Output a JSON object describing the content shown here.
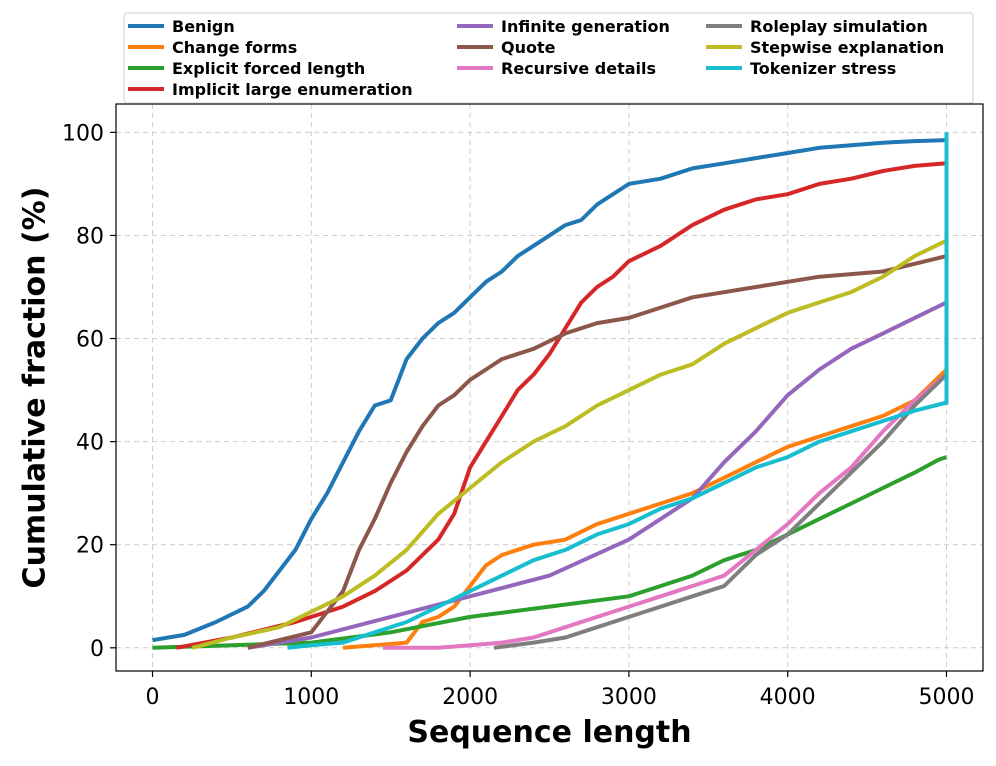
{
  "chart_data": {
    "type": "line",
    "title": "",
    "xlabel": "Sequence length",
    "ylabel": "Cumulative fraction (%)",
    "xlim": [
      -230,
      5230
    ],
    "ylim": [
      -4.5,
      105.5
    ],
    "xticks": [
      0,
      1000,
      2000,
      3000,
      4000,
      5000
    ],
    "yticks": [
      0,
      20,
      40,
      60,
      80,
      100
    ],
    "xtick_labels": [
      "0",
      "1000",
      "2000",
      "3000",
      "4000",
      "5000"
    ],
    "ytick_labels": [
      "0",
      "20",
      "40",
      "60",
      "80",
      "100"
    ],
    "grid": true,
    "legend_position": "top",
    "series": [
      {
        "name": "Benign",
        "color": "#1f77b4",
        "x": [
          0,
          200,
          400,
          600,
          700,
          800,
          900,
          1000,
          1100,
          1200,
          1300,
          1400,
          1500,
          1600,
          1700,
          1800,
          1900,
          2000,
          2100,
          2200,
          2300,
          2400,
          2500,
          2600,
          2700,
          2800,
          2900,
          3000,
          3200,
          3400,
          3600,
          3800,
          4000,
          4200,
          4400,
          4600,
          4800,
          5000
        ],
        "y": [
          1.5,
          2.5,
          5,
          8,
          11,
          15,
          19,
          25,
          30,
          36,
          42,
          47,
          48,
          56,
          60,
          63,
          65,
          68,
          71,
          73,
          76,
          78,
          80,
          82,
          83,
          86,
          88,
          90,
          91,
          93,
          94,
          95,
          96,
          97,
          97.5,
          98,
          98.3,
          98.5
        ]
      },
      {
        "name": "Change forms",
        "color": "#ff7f0e",
        "x": [
          1200,
          1600,
          1650,
          1700,
          1800,
          1900,
          2000,
          2100,
          2200,
          2400,
          2600,
          2800,
          3000,
          3200,
          3400,
          3600,
          3800,
          4000,
          4200,
          4400,
          4600,
          4800,
          5000
        ],
        "y": [
          0,
          1,
          3,
          5,
          6,
          8,
          12,
          16,
          18,
          20,
          21,
          24,
          26,
          28,
          30,
          33,
          36,
          39,
          41,
          43,
          45,
          48,
          54
        ]
      },
      {
        "name": "Explicit forced length",
        "color": "#2ca02c",
        "x": [
          0,
          500,
          1000,
          1500,
          2000,
          2500,
          3000,
          3200,
          3400,
          3600,
          3800,
          4000,
          4200,
          4400,
          4600,
          4800,
          4950,
          5000
        ],
        "y": [
          0,
          0.5,
          1,
          3,
          6,
          8,
          10,
          12,
          14,
          17,
          19,
          22,
          25,
          28,
          31,
          34,
          36.5,
          37
        ]
      },
      {
        "name": "Implicit large enumeration",
        "color": "#d62728",
        "x": [
          150,
          500,
          900,
          1200,
          1400,
          1600,
          1800,
          1900,
          2000,
          2100,
          2200,
          2300,
          2400,
          2500,
          2600,
          2700,
          2800,
          2900,
          3000,
          3200,
          3400,
          3600,
          3800,
          4000,
          4200,
          4400,
          4600,
          4800,
          5000
        ],
        "y": [
          0,
          2,
          5,
          8,
          11,
          15,
          21,
          26,
          35,
          40,
          45,
          50,
          53,
          57,
          62,
          67,
          70,
          72,
          75,
          78,
          82,
          85,
          87,
          88,
          90,
          91,
          92.5,
          93.5,
          94
        ]
      },
      {
        "name": "Infinite generation",
        "color": "#9467bd",
        "x": [
          600,
          1000,
          1500,
          2000,
          2500,
          3000,
          3200,
          3400,
          3600,
          3800,
          4000,
          4200,
          4400,
          4600,
          4800,
          5000
        ],
        "y": [
          0,
          2,
          6,
          10,
          14,
          21,
          25,
          29,
          36,
          42,
          49,
          54,
          58,
          61,
          64,
          67
        ]
      },
      {
        "name": "Quote",
        "color": "#8c564b",
        "x": [
          600,
          1000,
          1100,
          1200,
          1300,
          1400,
          1500,
          1600,
          1700,
          1800,
          1900,
          2000,
          2100,
          2200,
          2400,
          2600,
          2800,
          3000,
          3400,
          3800,
          4200,
          4600,
          5000
        ],
        "y": [
          0,
          3,
          7,
          11,
          19,
          25,
          32,
          38,
          43,
          47,
          49,
          52,
          54,
          56,
          58,
          61,
          63,
          64,
          68,
          70,
          72,
          73,
          76
        ]
      },
      {
        "name": "Recursive details",
        "color": "#e377c2",
        "x": [
          1450,
          1800,
          2000,
          2200,
          2400,
          2600,
          2800,
          3000,
          3200,
          3400,
          3600,
          3800,
          4000,
          4200,
          4400,
          4600,
          4800,
          5000
        ],
        "y": [
          0,
          0,
          0.5,
          1,
          2,
          4,
          6,
          8,
          10,
          12,
          14,
          19,
          24,
          30,
          35,
          42,
          48,
          53
        ]
      },
      {
        "name": "Roleplay simulation",
        "color": "#7f7f7f",
        "x": [
          2150,
          2400,
          2600,
          2800,
          3000,
          3200,
          3400,
          3600,
          3700,
          3800,
          4000,
          4200,
          4400,
          4600,
          4800,
          5000
        ],
        "y": [
          0,
          1,
          2,
          4,
          6,
          8,
          10,
          12,
          15,
          18,
          22,
          28,
          34,
          40,
          47,
          53
        ]
      },
      {
        "name": "Stepwise explanation",
        "color": "#bcbd22",
        "x": [
          250,
          500,
          800,
          1000,
          1200,
          1400,
          1600,
          1800,
          2000,
          2200,
          2400,
          2600,
          2800,
          3000,
          3200,
          3400,
          3600,
          3800,
          4000,
          4200,
          4400,
          4600,
          4800,
          5000
        ],
        "y": [
          0,
          2,
          4,
          7,
          10,
          14,
          19,
          26,
          31,
          36,
          40,
          43,
          47,
          50,
          53,
          55,
          59,
          62,
          65,
          67,
          69,
          72,
          76,
          79
        ]
      },
      {
        "name": "Tokenizer stress",
        "color": "#17becf",
        "x": [
          850,
          1000,
          1200,
          1400,
          1600,
          1800,
          2000,
          2200,
          2400,
          2600,
          2800,
          3000,
          3200,
          3400,
          3600,
          3800,
          4000,
          4200,
          4400,
          4600,
          4800,
          4990,
          5000,
          5000
        ],
        "y": [
          0,
          0.5,
          1,
          3,
          5,
          8,
          11,
          14,
          17,
          19,
          22,
          24,
          27,
          29,
          32,
          35,
          37,
          40,
          42,
          44,
          46,
          47.5,
          47.5,
          100
        ]
      }
    ]
  }
}
